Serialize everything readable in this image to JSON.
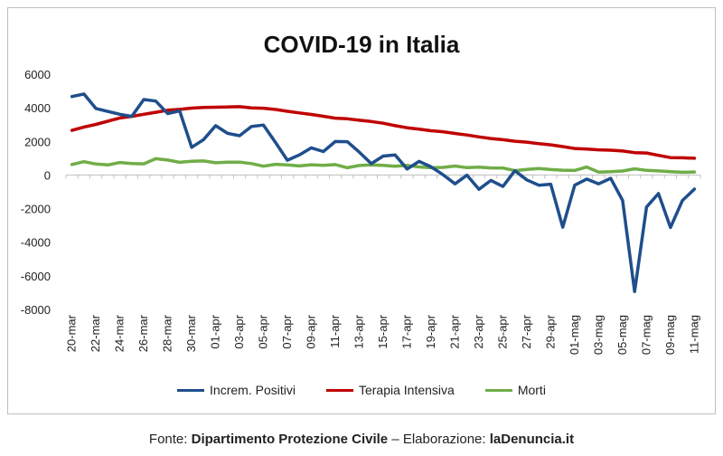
{
  "chart_data": {
    "type": "line",
    "title": "COVID-19 in Italia",
    "xlabel": "",
    "ylabel": "",
    "ylim": [
      -8000,
      6000
    ],
    "yticks": [
      "6000",
      "4000",
      "2000",
      "0",
      "-2000",
      "-4000",
      "-6000",
      "-8000"
    ],
    "y_tick_values": [
      6000,
      4000,
      2000,
      0,
      -2000,
      -4000,
      -6000,
      -8000
    ],
    "categories": [
      "20-mar",
      "21-mar",
      "22-mar",
      "23-mar",
      "24-mar",
      "25-mar",
      "26-mar",
      "27-mar",
      "28-mar",
      "29-mar",
      "30-mar",
      "31-mar",
      "01-apr",
      "02-apr",
      "03-apr",
      "04-apr",
      "05-apr",
      "06-apr",
      "07-apr",
      "08-apr",
      "09-apr",
      "10-apr",
      "11-apr",
      "12-apr",
      "13-apr",
      "14-apr",
      "15-apr",
      "16-apr",
      "17-apr",
      "18-apr",
      "19-apr",
      "20-apr",
      "21-apr",
      "22-apr",
      "23-apr",
      "24-apr",
      "25-apr",
      "26-apr",
      "27-apr",
      "28-apr",
      "29-apr",
      "30-apr",
      "01-mag",
      "02-mag",
      "03-mag",
      "04-mag",
      "05-mag",
      "06-mag",
      "07-mag",
      "08-mag",
      "09-mag",
      "10-mag",
      "11-mag"
    ],
    "tick_labels": [
      "20-mar",
      "22-mar",
      "24-mar",
      "26-mar",
      "28-mar",
      "30-mar",
      "01-apr",
      "03-apr",
      "05-apr",
      "07-apr",
      "09-apr",
      "11-apr",
      "13-apr",
      "15-apr",
      "17-apr",
      "19-apr",
      "21-apr",
      "23-apr",
      "25-apr",
      "27-apr",
      "29-apr",
      "01-mag",
      "03-mag",
      "05-mag",
      "07-mag",
      "09-mag",
      "11-mag"
    ],
    "series": [
      {
        "name": "Increm. Positivi",
        "color": "#1f4e8c",
        "values": [
          4670,
          4820,
          3957,
          3780,
          3612,
          3491,
          4492,
          4401,
          3651,
          3815,
          1648,
          2107,
          2937,
          2477,
          2339,
          2886,
          2972,
          1941,
          880,
          1195,
          1615,
          1396,
          1996,
          1984,
          1363,
          675,
          1127,
          1189,
          355,
          809,
          486,
          20,
          -528,
          -10,
          -851,
          -321,
          -680,
          256,
          -290,
          -608,
          -548,
          -3106,
          -608,
          -239,
          -525,
          -199,
          -1513,
          -6939,
          -1904,
          -1100,
          -3119,
          -1518,
          -836
        ]
      },
      {
        "name": "Terapia Intensiva",
        "color": "#c00000",
        "values": [
          2655,
          2857,
          3009,
          3204,
          3396,
          3489,
          3612,
          3732,
          3856,
          3906,
          3981,
          4023,
          4035,
          4053,
          4068,
          3994,
          3977,
          3898,
          3792,
          3693,
          3605,
          3497,
          3381,
          3343,
          3260,
          3186,
          3079,
          2936,
          2812,
          2733,
          2635,
          2573,
          2471,
          2384,
          2267,
          2173,
          2102,
          2009,
          1956,
          1863,
          1795,
          1694,
          1578,
          1539,
          1501,
          1479,
          1427,
          1333,
          1311,
          1168,
          1034,
          1027,
          999
        ]
      },
      {
        "name": "Morti",
        "color": "#70ad47",
        "values": [
          627,
          793,
          651,
          601,
          743,
          683,
          662,
          969,
          889,
          756,
          812,
          837,
          727,
          760,
          766,
          681,
          525,
          636,
          604,
          542,
          610,
          570,
          619,
          431,
          566,
          602,
          578,
          525,
          575,
          482,
          433,
          454,
          534,
          437,
          464,
          420,
          415,
          260,
          333,
          382,
          323,
          285,
          269,
          474,
          174,
          195,
          236,
          369,
          274,
          243,
          194,
          165,
          179
        ]
      }
    ],
    "grid": false,
    "legend_position": "bottom"
  },
  "footer": {
    "prefix": "Fonte: ",
    "source": "Dipartimento Protezione Civile",
    "middle": " – Elaborazione: ",
    "author": "laDenuncia.it"
  }
}
